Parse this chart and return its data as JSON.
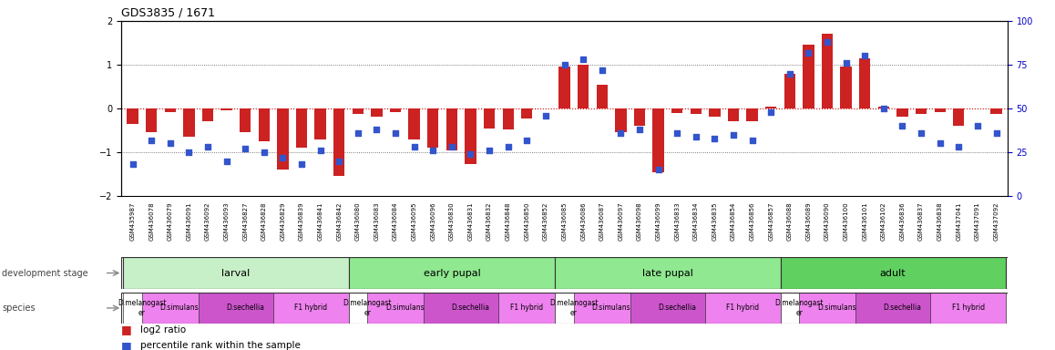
{
  "title": "GDS3835 / 1671",
  "samples": [
    "GSM435987",
    "GSM436078",
    "GSM436079",
    "GSM436091",
    "GSM436092",
    "GSM436093",
    "GSM436827",
    "GSM436828",
    "GSM436829",
    "GSM436839",
    "GSM436841",
    "GSM436842",
    "GSM436080",
    "GSM436083",
    "GSM436084",
    "GSM436095",
    "GSM436096",
    "GSM436830",
    "GSM436831",
    "GSM436832",
    "GSM436848",
    "GSM436850",
    "GSM436852",
    "GSM436085",
    "GSM436086",
    "GSM436087",
    "GSM436097",
    "GSM436098",
    "GSM436099",
    "GSM436833",
    "GSM436834",
    "GSM436835",
    "GSM436854",
    "GSM436856",
    "GSM436857",
    "GSM436088",
    "GSM436089",
    "GSM436090",
    "GSM436100",
    "GSM436101",
    "GSM436102",
    "GSM436836",
    "GSM436837",
    "GSM436838",
    "GSM437041",
    "GSM437091",
    "GSM437092"
  ],
  "log2_ratio": [
    -0.35,
    -0.55,
    -0.08,
    -0.65,
    -0.3,
    -0.05,
    -0.55,
    -0.75,
    -1.4,
    -0.9,
    -0.7,
    -1.55,
    -0.12,
    -0.18,
    -0.08,
    -0.7,
    -0.9,
    -0.95,
    -1.28,
    -0.45,
    -0.48,
    -0.22,
    0.0,
    0.95,
    1.0,
    0.55,
    -0.55,
    -0.4,
    -1.45,
    -0.1,
    -0.12,
    -0.18,
    -0.3,
    -0.3,
    0.05,
    0.8,
    1.45,
    1.7,
    0.95,
    1.15,
    0.05,
    -0.18,
    -0.12,
    -0.08,
    -0.4,
    0.0,
    -0.12
  ],
  "percentile": [
    18,
    32,
    30,
    25,
    28,
    20,
    27,
    25,
    22,
    18,
    26,
    20,
    36,
    38,
    36,
    28,
    26,
    28,
    24,
    26,
    28,
    32,
    46,
    75,
    78,
    72,
    36,
    38,
    15,
    36,
    34,
    33,
    35,
    32,
    48,
    70,
    82,
    88,
    76,
    80,
    50,
    40,
    36,
    30,
    28,
    40,
    36
  ],
  "dev_stages": [
    {
      "label": "larval",
      "start": 0,
      "end": 11
    },
    {
      "label": "early pupal",
      "start": 12,
      "end": 22
    },
    {
      "label": "late pupal",
      "start": 23,
      "end": 34
    },
    {
      "label": "adult",
      "start": 35,
      "end": 46
    }
  ],
  "stage_colors": [
    "#c8f0c8",
    "#90e890",
    "#90e890",
    "#60d060"
  ],
  "species_blocks": [
    {
      "label": "D.melanogast\ner",
      "start": 0,
      "end": 1,
      "color": "#ffffff"
    },
    {
      "label": "D.simulans",
      "start": 1,
      "end": 4,
      "color": "#ee82ee"
    },
    {
      "label": "D.sechellia",
      "start": 4,
      "end": 8,
      "color": "#cc55cc"
    },
    {
      "label": "F1 hybrid",
      "start": 8,
      "end": 11,
      "color": "#ee82ee"
    },
    {
      "label": "D.melanogast\ner",
      "start": 12,
      "end": 13,
      "color": "#ffffff"
    },
    {
      "label": "D.simulans",
      "start": 13,
      "end": 16,
      "color": "#ee82ee"
    },
    {
      "label": "D.sechellia",
      "start": 16,
      "end": 20,
      "color": "#cc55cc"
    },
    {
      "label": "F1 hybrid",
      "start": 20,
      "end": 22,
      "color": "#ee82ee"
    },
    {
      "label": "D.melanogast\ner",
      "start": 23,
      "end": 24,
      "color": "#ffffff"
    },
    {
      "label": "D.simulans",
      "start": 24,
      "end": 27,
      "color": "#ee82ee"
    },
    {
      "label": "D.sechellia",
      "start": 27,
      "end": 31,
      "color": "#cc55cc"
    },
    {
      "label": "F1 hybrid",
      "start": 31,
      "end": 34,
      "color": "#ee82ee"
    },
    {
      "label": "D.melanogast\ner",
      "start": 35,
      "end": 36,
      "color": "#ffffff"
    },
    {
      "label": "D.simulans",
      "start": 36,
      "end": 39,
      "color": "#ee82ee"
    },
    {
      "label": "D.sechellia",
      "start": 39,
      "end": 43,
      "color": "#cc55cc"
    },
    {
      "label": "F1 hybrid",
      "start": 43,
      "end": 46,
      "color": "#ee82ee"
    }
  ],
  "bar_color": "#cc2222",
  "dot_color": "#3355cc",
  "ylim_left": [
    -2.0,
    2.0
  ],
  "ylim_right": [
    0,
    100
  ],
  "hline_color": "#cc0000",
  "grid_color": "#555555"
}
